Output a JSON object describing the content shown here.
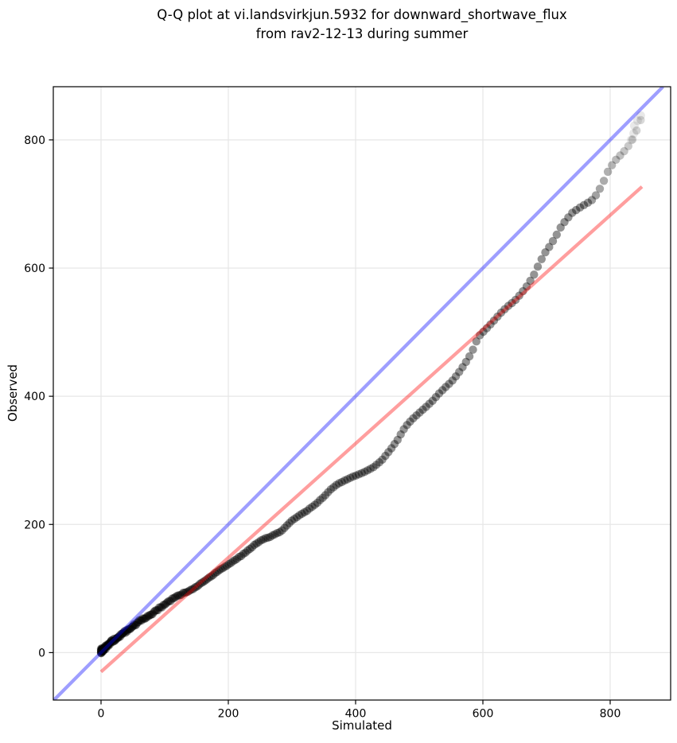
{
  "chart_data": {
    "type": "scatter",
    "title_line1": "Q-Q plot at vi.landsvirkjun.5932 for downward_shortwave_flux",
    "title_line2": "from rav2-12-13 during summer",
    "xlabel": "Simulated",
    "ylabel": "Observed",
    "xlim": [
      -75,
      895
    ],
    "ylim": [
      -74,
      883
    ],
    "x_ticks": [
      "0",
      "200",
      "400",
      "600",
      "800"
    ],
    "x_tick_values": [
      0,
      200,
      400,
      600,
      800
    ],
    "y_ticks": [
      "0",
      "200",
      "400",
      "600",
      "800"
    ],
    "y_tick_values": [
      0,
      200,
      400,
      600,
      800
    ],
    "grid": true,
    "grid_color": "#e7e7e7",
    "legend": "none",
    "identity_line": {
      "name": "identity (y = x)",
      "color": "#0000ff",
      "alpha": 0.38,
      "points": [
        [
          -74,
          -74
        ],
        [
          883,
          883
        ]
      ]
    },
    "regression_line": {
      "name": "fit",
      "color": "#ff0000",
      "alpha": 0.38,
      "points": [
        [
          0,
          -30
        ],
        [
          850,
          727
        ]
      ]
    },
    "scatter": {
      "name": "quantile points (Simulated vs Observed)",
      "color": "#000000",
      "marker_radius_px": 5.2,
      "base_alpha": 0.42,
      "curve": [
        [
          0,
          2
        ],
        [
          8,
          9
        ],
        [
          16,
          16
        ],
        [
          24,
          22
        ],
        [
          32,
          28
        ],
        [
          40,
          34
        ],
        [
          48,
          40
        ],
        [
          56,
          46
        ],
        [
          64,
          51
        ],
        [
          72,
          56
        ],
        [
          80,
          61
        ],
        [
          90,
          68
        ],
        [
          100,
          75
        ],
        [
          110,
          82
        ],
        [
          120,
          88
        ],
        [
          130,
          93
        ],
        [
          140,
          97
        ],
        [
          150,
          103
        ],
        [
          160,
          110
        ],
        [
          170,
          117
        ],
        [
          180,
          124
        ],
        [
          190,
          131
        ],
        [
          200,
          137
        ],
        [
          210,
          144
        ],
        [
          220,
          151
        ],
        [
          230,
          159
        ],
        [
          240,
          167
        ],
        [
          250,
          174
        ],
        [
          258,
          178
        ],
        [
          266,
          181
        ],
        [
          274,
          185
        ],
        [
          282,
          189
        ],
        [
          290,
          196
        ],
        [
          300,
          206
        ],
        [
          310,
          213
        ],
        [
          320,
          219
        ],
        [
          330,
          226
        ],
        [
          340,
          234
        ],
        [
          350,
          243
        ],
        [
          360,
          254
        ],
        [
          370,
          262
        ],
        [
          378,
          266
        ],
        [
          386,
          270
        ],
        [
          394,
          274
        ],
        [
          402,
          277
        ],
        [
          410,
          280
        ],
        [
          418,
          284
        ],
        [
          426,
          288
        ],
        [
          434,
          294
        ],
        [
          442,
          301
        ],
        [
          450,
          311
        ],
        [
          458,
          321
        ],
        [
          466,
          332
        ],
        [
          474,
          346
        ],
        [
          482,
          357
        ],
        [
          490,
          365
        ],
        [
          500,
          374
        ],
        [
          510,
          383
        ],
        [
          520,
          392
        ],
        [
          530,
          403
        ],
        [
          540,
          413
        ],
        [
          550,
          422
        ],
        [
          560,
          434
        ],
        [
          570,
          448
        ],
        [
          575,
          456
        ],
        [
          580,
          464
        ],
        [
          585,
          474
        ],
        [
          590,
          486
        ],
        [
          595,
          495
        ],
        [
          600,
          500
        ],
        [
          610,
          510
        ],
        [
          620,
          521
        ],
        [
          630,
          532
        ],
        [
          640,
          541
        ],
        [
          650,
          549
        ],
        [
          660,
          560
        ],
        [
          670,
          573
        ],
        [
          680,
          589
        ],
        [
          690,
          610
        ],
        [
          700,
          628
        ],
        [
          705,
          634
        ],
        [
          710,
          642
        ],
        [
          715,
          650
        ],
        [
          720,
          660
        ],
        [
          725,
          668
        ],
        [
          730,
          674
        ],
        [
          740,
          686
        ],
        [
          750,
          693
        ],
        [
          760,
          699
        ],
        [
          770,
          705
        ],
        [
          775,
          710
        ],
        [
          780,
          717
        ],
        [
          785,
          726
        ],
        [
          790,
          736
        ],
        [
          795,
          748
        ],
        [
          800,
          756
        ],
        [
          805,
          764
        ],
        [
          810,
          770
        ],
        [
          815,
          775
        ],
        [
          820,
          780
        ],
        [
          826,
          787
        ],
        [
          832,
          795
        ],
        [
          838,
          806
        ],
        [
          842,
          816
        ],
        [
          845,
          824
        ],
        [
          848,
          831
        ]
      ],
      "ghost_points": [
        [
          833,
          800
        ],
        [
          837,
          810
        ],
        [
          838,
          822
        ],
        [
          843,
          830
        ],
        [
          848,
          838
        ]
      ],
      "ghost_alpha": 0.09
    }
  }
}
